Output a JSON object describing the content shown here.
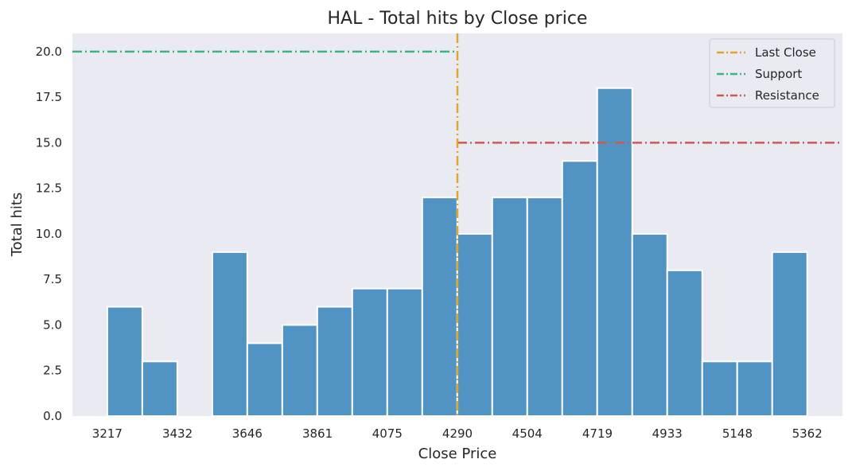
{
  "chart_data": {
    "type": "bar",
    "title": "HAL - Total hits by Close price",
    "xlabel": "Close Price",
    "ylabel": "Total hits",
    "bin_width": 107.25,
    "xlim": [
      3110,
      5470
    ],
    "ylim": [
      0,
      21
    ],
    "x_ticks": [
      3217,
      3432,
      3646,
      3861,
      4075,
      4290,
      4504,
      4719,
      4933,
      5148,
      5362
    ],
    "y_ticks": [
      "0.0",
      "2.5",
      "5.0",
      "7.5",
      "10.0",
      "12.5",
      "15.0",
      "17.5",
      "20.0"
    ],
    "bins": [
      {
        "start": 3217.0,
        "count": 6
      },
      {
        "start": 3324.25,
        "count": 3
      },
      {
        "start": 3431.5,
        "count": 0
      },
      {
        "start": 3538.75,
        "count": 9
      },
      {
        "start": 3646.0,
        "count": 4
      },
      {
        "start": 3753.25,
        "count": 5
      },
      {
        "start": 3860.5,
        "count": 6
      },
      {
        "start": 3967.75,
        "count": 7
      },
      {
        "start": 4075.0,
        "count": 7
      },
      {
        "start": 4182.25,
        "count": 12
      },
      {
        "start": 4289.5,
        "count": 10
      },
      {
        "start": 4396.75,
        "count": 12
      },
      {
        "start": 4504.0,
        "count": 12
      },
      {
        "start": 4611.25,
        "count": 14
      },
      {
        "start": 4718.5,
        "count": 18
      },
      {
        "start": 4825.75,
        "count": 10
      },
      {
        "start": 4933.0,
        "count": 8
      },
      {
        "start": 5040.25,
        "count": 3
      },
      {
        "start": 5147.5,
        "count": 3
      },
      {
        "start": 5254.75,
        "count": 9
      }
    ],
    "last_close": 4290,
    "support": {
      "value": 20,
      "x_from": 3110,
      "x_to": 4290
    },
    "resistance": {
      "value": 15,
      "x_from": 4290,
      "x_to": 5470
    },
    "legend": [
      {
        "label": "Last Close",
        "color": "#e3a32c"
      },
      {
        "label": "Support",
        "color": "#3cb77b"
      },
      {
        "label": "Resistance",
        "color": "#cb5a4f"
      }
    ],
    "legend_position": "top-right",
    "grid": false,
    "colors": {
      "bar": "#5194c3",
      "plot_bg": "#eaeaf2",
      "last_close": "#e3a32c",
      "support": "#3cb77b",
      "resistance": "#cb5a4f"
    }
  }
}
